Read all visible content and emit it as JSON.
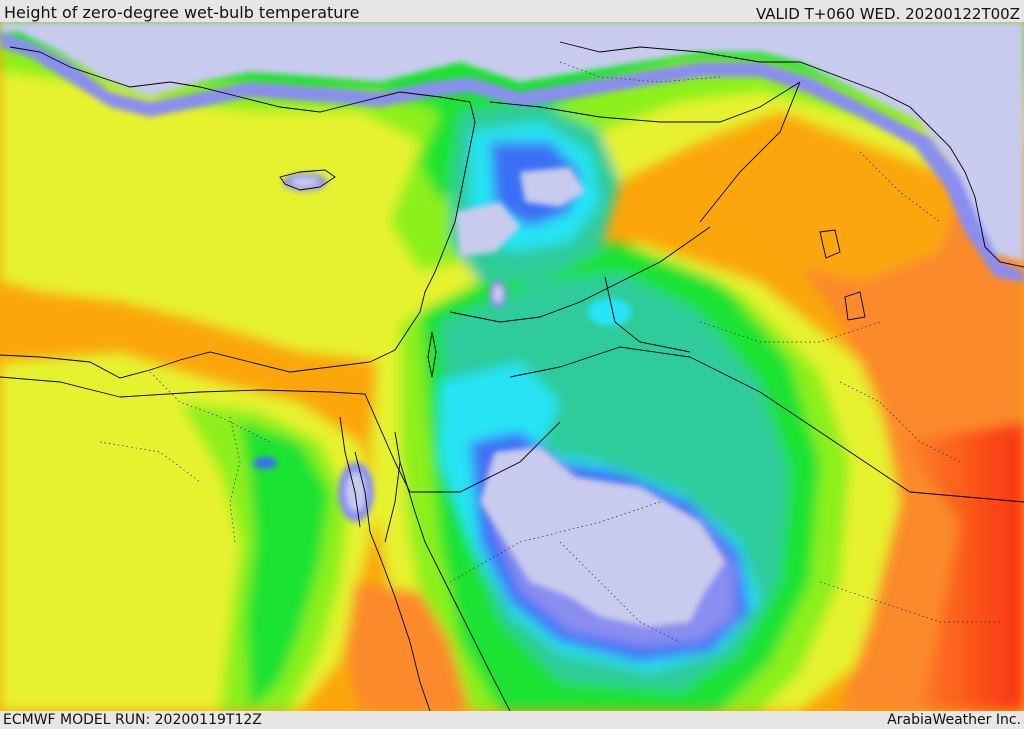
{
  "header": {
    "title": "Height of zero-degree wet-bulb temperature",
    "valid": "VALID T+060 WED. 20200122T00Z"
  },
  "footer": {
    "model_run": "ECMWF MODEL RUN: 20200119T12Z",
    "credit": "ArabiaWeather Inc."
  },
  "palette": {
    "lavender": "#c8cbed",
    "indigo": "#8a8ef0",
    "blue": "#3a6ff5",
    "cyan": "#25e4f5",
    "teal": "#2fcc9a",
    "green": "#1fe233",
    "lime": "#8cf01c",
    "yellow": "#e6f22e",
    "orange": "#fba60a",
    "dark_orange": "#fb8a2a",
    "red_orange": "#fb5418",
    "red": "#f8321a"
  },
  "map": {
    "projection": "lat-lon",
    "features": [
      "coastlines",
      "country-borders",
      "province-borders-dotted",
      "lakes"
    ]
  }
}
